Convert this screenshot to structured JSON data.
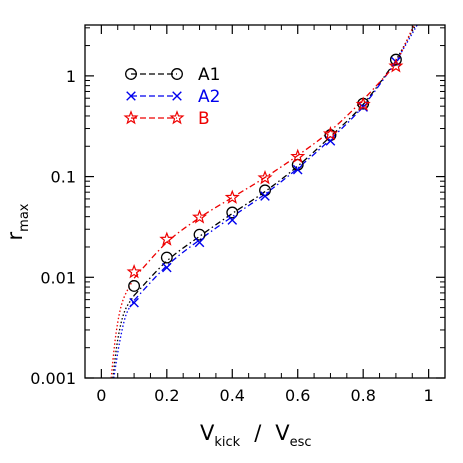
{
  "chart_data": {
    "type": "scatter",
    "title": "",
    "xlabel": {
      "main": "V",
      "sub": "kick",
      "sep": "/",
      "main2": "V",
      "sub2": "esc"
    },
    "ylabel": {
      "main": "r",
      "sub": "max"
    },
    "xlim": [
      -0.05,
      1.05
    ],
    "ylim": [
      0.001,
      3.2
    ],
    "yscale": "log",
    "grid": false,
    "legend_position": "top-left",
    "x_ticks": [
      {
        "value": 0,
        "label": "0"
      },
      {
        "value": 0.2,
        "label": "0.2"
      },
      {
        "value": 0.4,
        "label": "0.4"
      },
      {
        "value": 0.6,
        "label": "0.6"
      },
      {
        "value": 0.8,
        "label": "0.8"
      },
      {
        "value": 1,
        "label": "1"
      }
    ],
    "y_ticks": [
      {
        "value": 0.001,
        "label": "0.001"
      },
      {
        "value": 0.01,
        "label": "0.01"
      },
      {
        "value": 0.1,
        "label": "0.1"
      },
      {
        "value": 1,
        "label": "1"
      }
    ],
    "series": [
      {
        "name": "A1",
        "color": "#000000",
        "marker": "circle",
        "x": [
          0.1,
          0.2,
          0.3,
          0.4,
          0.5,
          0.6,
          0.7,
          0.8,
          0.9
        ],
        "y": [
          0.0082,
          0.0157,
          0.0265,
          0.044,
          0.073,
          0.131,
          0.258,
          0.53,
          1.45
        ],
        "fit_x": [
          0.1,
          0.2,
          0.3,
          0.4,
          0.5,
          0.6,
          0.7,
          0.8,
          0.9
        ],
        "fit_y": [
          0.0066,
          0.0145,
          0.0255,
          0.043,
          0.071,
          0.127,
          0.25,
          0.52,
          1.42
        ],
        "extrap_x": [
          0.035,
          0.05,
          0.07,
          0.1,
          0.9,
          0.96
        ],
        "extrap_y": [
          0.001,
          0.0024,
          0.0045,
          0.0066,
          1.42,
          3.2
        ]
      },
      {
        "name": "A2",
        "color": "#0000ee",
        "marker": "x",
        "x": [
          0.1,
          0.2,
          0.3,
          0.4,
          0.5,
          0.6,
          0.7,
          0.8,
          0.9
        ],
        "y": [
          0.0056,
          0.0125,
          0.0222,
          0.037,
          0.064,
          0.117,
          0.226,
          0.49,
          1.38
        ],
        "fit_x": [
          0.1,
          0.2,
          0.3,
          0.4,
          0.5,
          0.6,
          0.7,
          0.8,
          0.9
        ],
        "fit_y": [
          0.0059,
          0.013,
          0.0235,
          0.04,
          0.067,
          0.121,
          0.235,
          0.5,
          1.38
        ],
        "extrap_x": [
          0.038,
          0.055,
          0.075,
          0.1,
          0.9,
          0.965
        ],
        "extrap_y": [
          0.001,
          0.0022,
          0.0042,
          0.0059,
          1.38,
          3.2
        ]
      },
      {
        "name": "B",
        "color": "#ee0000",
        "marker": "star",
        "x": [
          0.1,
          0.2,
          0.3,
          0.4,
          0.5,
          0.6,
          0.7,
          0.8,
          0.9
        ],
        "y": [
          0.0113,
          0.0238,
          0.0395,
          0.062,
          0.097,
          0.158,
          0.265,
          0.52,
          1.25
        ],
        "fit_x": [
          0.1,
          0.2,
          0.3,
          0.4,
          0.5,
          0.6,
          0.7,
          0.8,
          0.9
        ],
        "fit_y": [
          0.0098,
          0.0222,
          0.039,
          0.062,
          0.098,
          0.162,
          0.285,
          0.58,
          1.3
        ],
        "extrap_x": [
          0.03,
          0.045,
          0.065,
          0.1,
          0.9,
          0.955
        ],
        "extrap_y": [
          0.001,
          0.0028,
          0.0058,
          0.0098,
          1.3,
          3.2
        ]
      }
    ]
  }
}
